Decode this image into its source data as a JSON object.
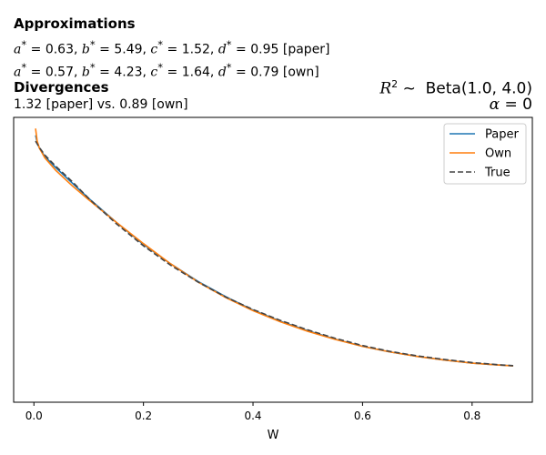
{
  "header": {
    "approx_title": "Approximations",
    "paper_params": {
      "a": "0.63",
      "b": "5.49",
      "c": "1.52",
      "d": "0.95",
      "tag": "[paper]"
    },
    "own_params": {
      "a": "0.57",
      "b": "4.23",
      "c": "1.64",
      "d": "0.79",
      "tag": "[own]"
    },
    "div_title": "Divergences",
    "div_text": "1.32 [paper] vs. 0.89 [own]",
    "dist_text": "Beta(1.0, 4.0)",
    "alpha_text": "0"
  },
  "chart_data": {
    "type": "line",
    "title": "",
    "xlabel": "W",
    "ylabel": "",
    "xlim": [
      -0.037,
      0.91
    ],
    "ylim": [
      0,
      1.02
    ],
    "xticks": [
      0.0,
      0.2,
      0.4,
      0.6,
      0.8
    ],
    "xtick_labels": [
      "0.0",
      "0.2",
      "0.4",
      "0.6",
      "0.8"
    ],
    "yticks_visible": false,
    "grid": false,
    "legend_position": "top-right",
    "series": [
      {
        "name": "Paper",
        "color": "#1f77b4",
        "style": "solid",
        "x": [
          0.003,
          0.006,
          0.01,
          0.02,
          0.04,
          0.07,
          0.1,
          0.15,
          0.2,
          0.25,
          0.3,
          0.35,
          0.4,
          0.45,
          0.5,
          0.55,
          0.6,
          0.65,
          0.7,
          0.75,
          0.8,
          0.85,
          0.875
        ],
        "y": [
          0.956,
          0.93,
          0.91,
          0.88,
          0.84,
          0.785,
          0.73,
          0.645,
          0.565,
          0.495,
          0.432,
          0.378,
          0.33,
          0.29,
          0.256,
          0.226,
          0.2,
          0.18,
          0.164,
          0.151,
          0.14,
          0.133,
          0.13
        ]
      },
      {
        "name": "Own",
        "color": "#ff7f0e",
        "style": "solid",
        "x": [
          0.003,
          0.006,
          0.01,
          0.02,
          0.04,
          0.07,
          0.1,
          0.15,
          0.2,
          0.25,
          0.3,
          0.35,
          0.4,
          0.45,
          0.5,
          0.55,
          0.6,
          0.65,
          0.7,
          0.75,
          0.8,
          0.85,
          0.875
        ],
        "y": [
          0.98,
          0.935,
          0.91,
          0.875,
          0.83,
          0.775,
          0.725,
          0.645,
          0.568,
          0.495,
          0.43,
          0.375,
          0.328,
          0.288,
          0.254,
          0.225,
          0.2,
          0.18,
          0.164,
          0.151,
          0.14,
          0.133,
          0.13
        ]
      },
      {
        "name": "True",
        "color": "#444444",
        "style": "dashed",
        "x": [
          0.003,
          0.006,
          0.01,
          0.02,
          0.04,
          0.07,
          0.1,
          0.15,
          0.2,
          0.25,
          0.3,
          0.35,
          0.4,
          0.45,
          0.5,
          0.55,
          0.6,
          0.65,
          0.7,
          0.75,
          0.8,
          0.85,
          0.875
        ],
        "y": [
          0.935,
          0.925,
          0.912,
          0.885,
          0.845,
          0.79,
          0.73,
          0.64,
          0.56,
          0.49,
          0.43,
          0.377,
          0.332,
          0.293,
          0.259,
          0.229,
          0.203,
          0.182,
          0.166,
          0.153,
          0.142,
          0.134,
          0.131
        ]
      }
    ]
  }
}
